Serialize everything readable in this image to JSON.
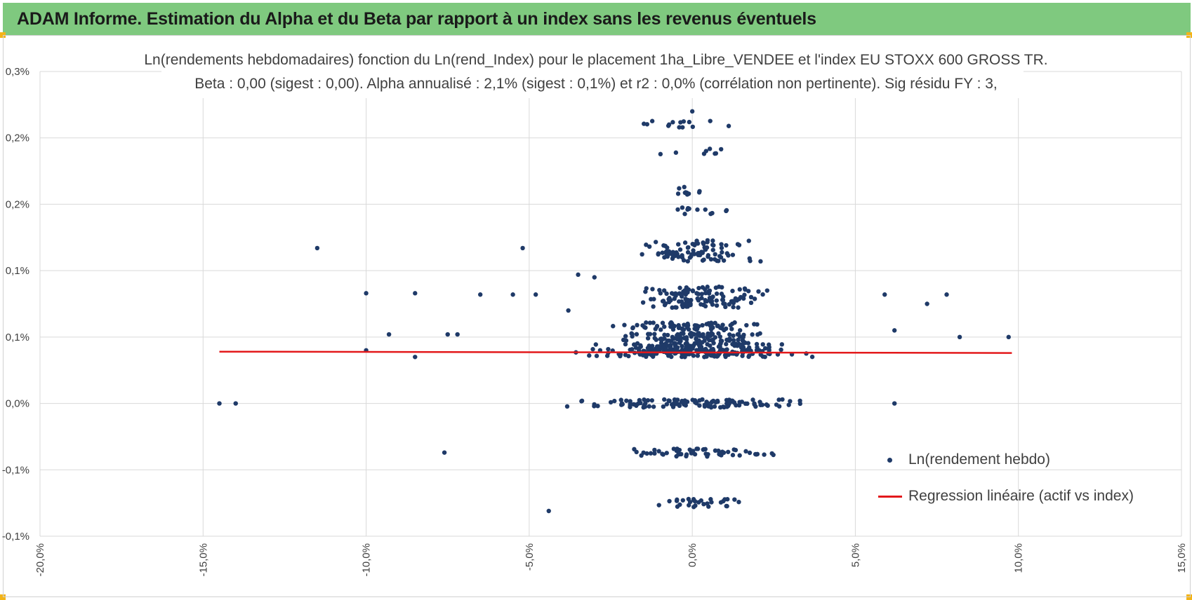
{
  "header": {
    "title": "ADAM Informe. Estimation du Alpha et du Beta par rapport à un index sans les revenus éventuels"
  },
  "colors": {
    "banner": "#7fc97f",
    "corner_accent": "#f3b418",
    "points": "#1f3a68",
    "regression": "#e3191b",
    "grid": "#d9d9d9",
    "text": "#404040"
  },
  "chart_data": {
    "type": "scatter",
    "title_line1": "Ln(rendements hebdomadaires) fonction du Ln(rend_Index) pour le placement 1ha_Libre_VENDEE et l'index EU STOXX  600 GROSS TR.",
    "title_line2": "Beta : 0,00 (sigest : 0,00).  Alpha annualisé : 2,1% (sigest : 0,1%) et r2 : 0,0% (corrélation non pertinente). Sig résidu FY : 3,",
    "xlabel": "",
    "ylabel": "",
    "xlim": [
      -0.2,
      0.15
    ],
    "ylim": [
      -0.001,
      0.0025
    ],
    "grid": true,
    "legend_position": "right",
    "x_ticks": [
      {
        "value": -0.2,
        "label": "-20,0%"
      },
      {
        "value": -0.15,
        "label": "-15,0%"
      },
      {
        "value": -0.1,
        "label": "-10,0%"
      },
      {
        "value": -0.05,
        "label": "-5,0%"
      },
      {
        "value": 0.0,
        "label": "0,0%"
      },
      {
        "value": 0.05,
        "label": "5,0%"
      },
      {
        "value": 0.1,
        "label": "10,0%"
      },
      {
        "value": 0.15,
        "label": "15,0%"
      }
    ],
    "y_ticks": [
      {
        "value": 0.0025,
        "label": "0,3%"
      },
      {
        "value": 0.002,
        "label": "0,2%"
      },
      {
        "value": 0.0015,
        "label": "0,2%"
      },
      {
        "value": 0.001,
        "label": "0,1%"
      },
      {
        "value": 0.0005,
        "label": "0,1%"
      },
      {
        "value": 0.0,
        "label": "0,0%"
      },
      {
        "value": -0.0005,
        "label": "-0,1%"
      },
      {
        "value": -0.001,
        "label": "-0,1%"
      }
    ],
    "series": [
      {
        "name": "Ln(rendement hebdo)",
        "kind": "scatter",
        "clusters": [
          {
            "y": 0.0,
            "x_range": [
              -0.05,
              0.05
            ],
            "count": 120
          },
          {
            "y": 0.00038,
            "x_range": [
              -0.04,
              0.04
            ],
            "count": 150
          },
          {
            "y": 0.00043,
            "x_range": [
              -0.035,
              0.035
            ],
            "count": 110
          },
          {
            "y": 0.0005,
            "x_range": [
              -0.03,
              0.03
            ],
            "count": 90
          },
          {
            "y": 0.00058,
            "x_range": [
              -0.03,
              0.03
            ],
            "count": 70
          },
          {
            "y": 0.00075,
            "x_range": [
              -0.025,
              0.025
            ],
            "count": 40
          },
          {
            "y": 0.0008,
            "x_range": [
              -0.03,
              0.03
            ],
            "count": 45
          },
          {
            "y": 0.00085,
            "x_range": [
              -0.03,
              0.03
            ],
            "count": 35
          },
          {
            "y": 0.0011,
            "x_range": [
              -0.025,
              0.025
            ],
            "count": 30
          },
          {
            "y": 0.00113,
            "x_range": [
              -0.02,
              0.02
            ],
            "count": 30
          },
          {
            "y": 0.0012,
            "x_range": [
              -0.025,
              0.025
            ],
            "count": 30
          },
          {
            "y": 0.00145,
            "x_range": [
              -0.01,
              0.015
            ],
            "count": 12
          },
          {
            "y": 0.0016,
            "x_range": [
              -0.01,
              0.01
            ],
            "count": 10
          },
          {
            "y": 0.0019,
            "x_range": [
              -0.015,
              0.015
            ],
            "count": 8
          },
          {
            "y": 0.0021,
            "x_range": [
              -0.025,
              0.02
            ],
            "count": 14
          },
          {
            "y": -0.00037,
            "x_range": [
              -0.03,
              0.035
            ],
            "count": 55
          },
          {
            "y": -0.00075,
            "x_range": [
              -0.015,
              0.02
            ],
            "count": 30
          }
        ],
        "points": [
          {
            "x": -0.145,
            "y": 0.0
          },
          {
            "x": -0.14,
            "y": 0.0
          },
          {
            "x": -0.115,
            "y": 0.00117
          },
          {
            "x": -0.1,
            "y": 0.00083
          },
          {
            "x": -0.1,
            "y": 0.0004
          },
          {
            "x": -0.093,
            "y": 0.00052
          },
          {
            "x": -0.085,
            "y": 0.00083
          },
          {
            "x": -0.085,
            "y": 0.00035
          },
          {
            "x": -0.075,
            "y": 0.00052
          },
          {
            "x": -0.072,
            "y": 0.00052
          },
          {
            "x": -0.076,
            "y": -0.00037
          },
          {
            "x": -0.065,
            "y": 0.00082
          },
          {
            "x": -0.055,
            "y": 0.00082
          },
          {
            "x": -0.052,
            "y": 0.00117
          },
          {
            "x": -0.048,
            "y": 0.00082
          },
          {
            "x": -0.044,
            "y": -0.00081
          },
          {
            "x": -0.038,
            "y": 0.0007
          },
          {
            "x": -0.035,
            "y": 0.00097
          },
          {
            "x": -0.03,
            "y": 0.00095
          },
          {
            "x": 0.059,
            "y": 0.00082
          },
          {
            "x": 0.062,
            "y": 0.0
          },
          {
            "x": 0.062,
            "y": 0.00055
          },
          {
            "x": 0.072,
            "y": 0.00075
          },
          {
            "x": 0.078,
            "y": 0.00082
          },
          {
            "x": 0.082,
            "y": 0.0005
          },
          {
            "x": 0.097,
            "y": 0.0005
          },
          {
            "x": 0.0,
            "y": 0.0022
          }
        ]
      },
      {
        "name": "Regression linéaire (actif vs index)",
        "kind": "line",
        "x": [
          -0.145,
          0.098
        ],
        "y": [
          0.00039,
          0.00038
        ]
      }
    ]
  }
}
